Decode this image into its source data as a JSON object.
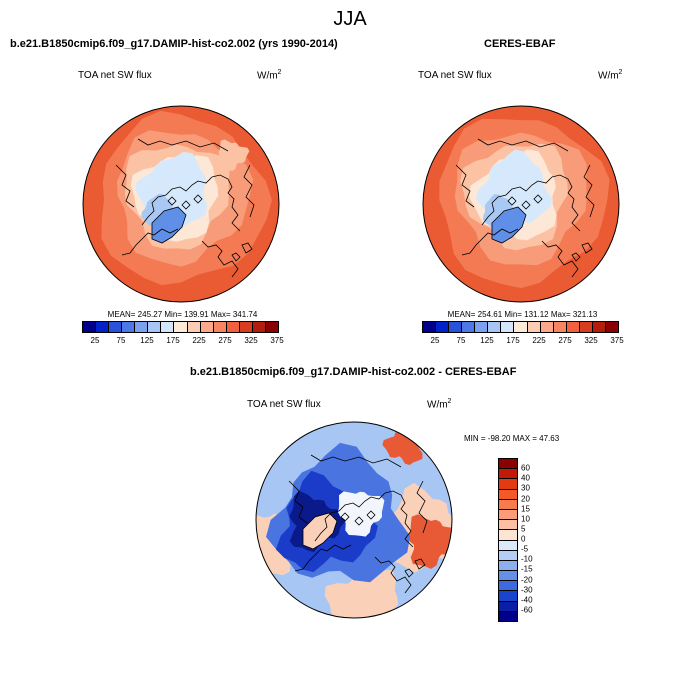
{
  "season": "JJA",
  "panels": [
    {
      "title": "b.e21.B1850cmip6.f09_g17.DAMIP-hist-co2.002 (yrs 1990-2014)",
      "variable": "TOA net SW flux",
      "units": "W/m",
      "units_sup": "2",
      "stats": "MEAN= 245.27  Min= 139.91  Max= 341.74",
      "colorbar_labels": [
        "25",
        "75",
        "125",
        "175",
        "225",
        "275",
        "325",
        "375"
      ],
      "colorbar_colors": [
        "#00008b",
        "#0022c8",
        "#2a52d8",
        "#4d79e6",
        "#7ba1ef",
        "#a7c6f6",
        "#d3e6fb",
        "#fdebd8",
        "#fccdb2",
        "#fba98a",
        "#f78562",
        "#f2603d",
        "#d83d1f",
        "#b21d0d",
        "#8b0000"
      ]
    },
    {
      "title": "CERES-EBAF",
      "variable": "TOA net SW flux",
      "units": "W/m",
      "units_sup": "2",
      "stats": "MEAN= 254.61  Min= 131.12  Max= 321.13",
      "colorbar_labels": [
        "25",
        "75",
        "125",
        "175",
        "225",
        "275",
        "325",
        "375"
      ],
      "colorbar_colors": [
        "#00008b",
        "#0022c8",
        "#2a52d8",
        "#4d79e6",
        "#7ba1ef",
        "#a7c6f6",
        "#d3e6fb",
        "#fdebd8",
        "#fccdb2",
        "#fba98a",
        "#f78562",
        "#f2603d",
        "#d83d1f",
        "#b21d0d",
        "#8b0000"
      ]
    },
    {
      "title": "b.e21.B1850cmip6.f09_g17.DAMIP-hist-co2.002 - CERES-EBAF",
      "variable": "TOA net SW flux",
      "units": "W/m",
      "units_sup": "2",
      "stats": "MIN = -98.20 MAX =  47.63",
      "colorbar_labels": [
        "60",
        "40",
        "30",
        "20",
        "15",
        "10",
        "5",
        "0",
        "-5",
        "-10",
        "-15",
        "-20",
        "-30",
        "-40",
        "-60"
      ],
      "colorbar_colors": [
        "#8b0000",
        "#c11a06",
        "#e23a12",
        "#f45a28",
        "#f87b4d",
        "#fa9c77",
        "#fcbfa3",
        "#fde4d4",
        "#dbe9fb",
        "#b4cef6",
        "#8cb0ef",
        "#6690e6",
        "#3d6bdd",
        "#1a44cc",
        "#0a1fa6",
        "#00008b"
      ]
    }
  ],
  "map_colors": {
    "ice_light": "#d6e8fb",
    "ice_mid": "#a9c9f4",
    "greenland": "#5f8fe6",
    "pale": "#fde7d6",
    "salmon_light": "#fbc3a4",
    "salmon": "#f79b78",
    "orange": "#f37a52",
    "deep_orange": "#ea5a33",
    "diff_white": "#f2f6fc",
    "diff_light_blue": "#a7c6f4",
    "diff_blue": "#4a74e0",
    "diff_dark_blue": "#1a3cc8",
    "diff_navy": "#0a1a8a",
    "diff_pink": "#fbd0b8",
    "diff_red": "#e85a36"
  }
}
